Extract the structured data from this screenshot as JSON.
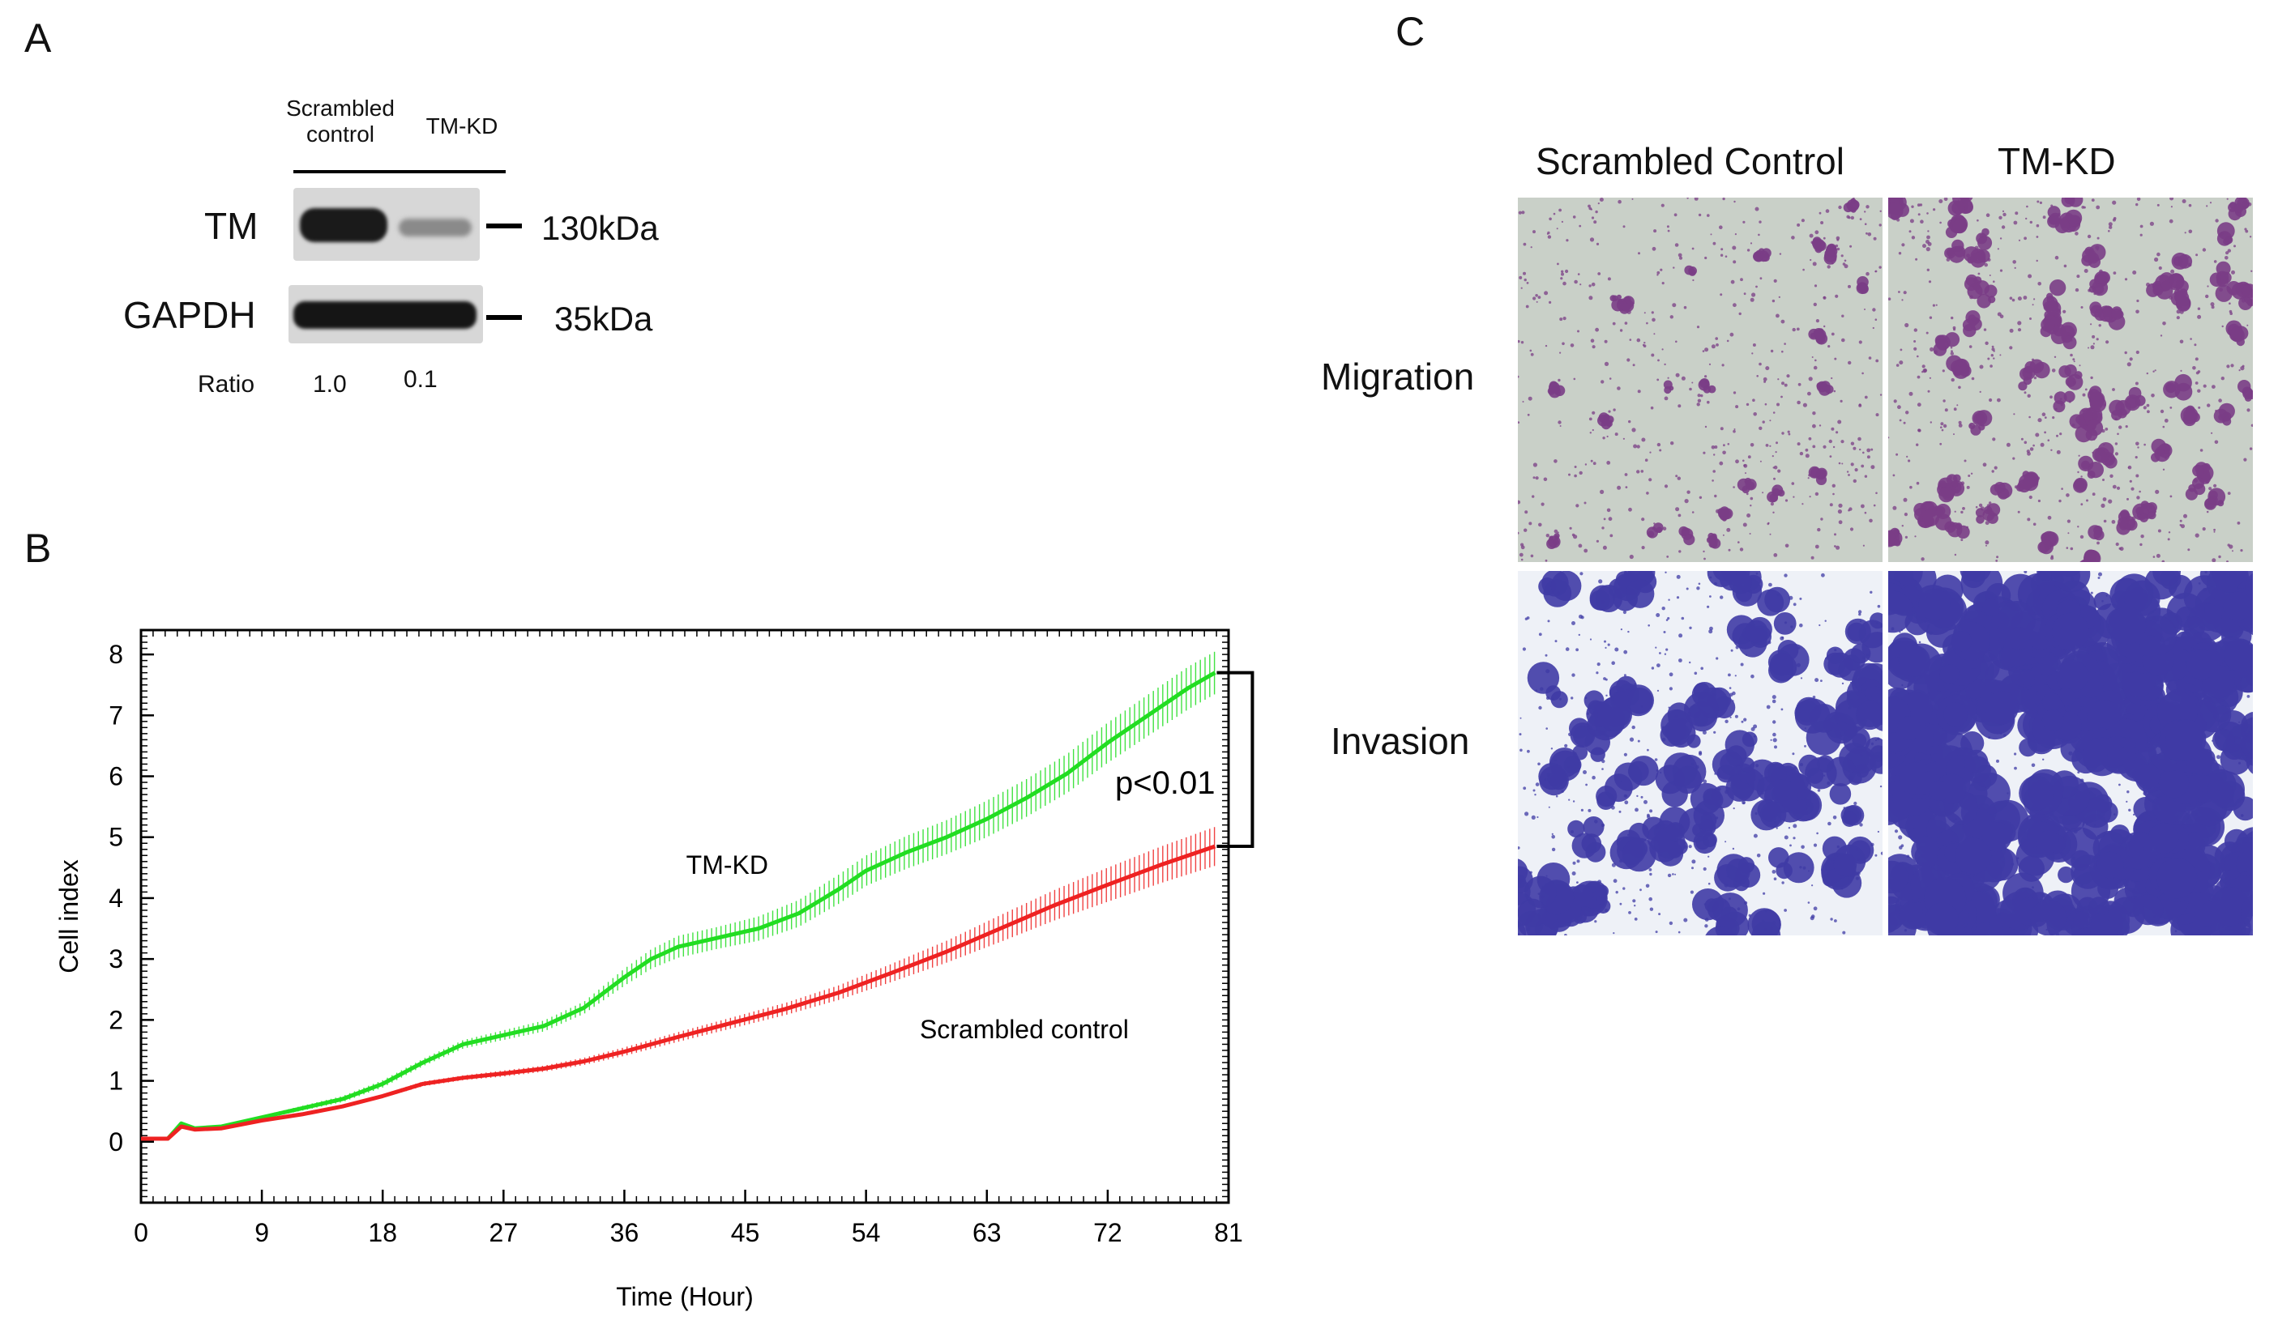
{
  "panels": {
    "a": "A",
    "b": "B",
    "c": "C"
  },
  "western_blot": {
    "lanes": [
      "Scrambled\ncontrol",
      "TM-KD"
    ],
    "rows": [
      {
        "label": "TM",
        "size": "130kDa"
      },
      {
        "label": "GAPDH",
        "size": "35kDa"
      }
    ],
    "ratio_label": "Ratio",
    "ratio_values": [
      "1.0",
      "0.1"
    ]
  },
  "chart_data": {
    "type": "line",
    "title": "",
    "xlabel": "Time (Hour)",
    "ylabel": "Cell index",
    "xlim": [
      0,
      81
    ],
    "ylim": [
      -1,
      8.4
    ],
    "xticks": [
      0,
      9,
      18,
      27,
      36,
      45,
      54,
      63,
      72,
      81
    ],
    "yticks": [
      0,
      1,
      2,
      3,
      4,
      5,
      6,
      7,
      8
    ],
    "series": [
      {
        "name": "TM-KD",
        "color": "#22dd22",
        "x": [
          0,
          2,
          3,
          4,
          6,
          9,
          12,
          15,
          18,
          21,
          24,
          27,
          30,
          33,
          36,
          38,
          40,
          43,
          46,
          49,
          52,
          54,
          57,
          60,
          63,
          66,
          69,
          72,
          75,
          78,
          80
        ],
        "y": [
          0.05,
          0.05,
          0.3,
          0.22,
          0.25,
          0.4,
          0.55,
          0.7,
          0.95,
          1.3,
          1.6,
          1.75,
          1.9,
          2.2,
          2.7,
          3.0,
          3.2,
          3.35,
          3.5,
          3.75,
          4.15,
          4.45,
          4.75,
          5.0,
          5.3,
          5.65,
          6.05,
          6.55,
          7.0,
          7.45,
          7.7
        ],
        "error": [
          0,
          0,
          0,
          0,
          0.02,
          0.03,
          0.04,
          0.05,
          0.06,
          0.06,
          0.07,
          0.08,
          0.09,
          0.1,
          0.14,
          0.16,
          0.18,
          0.18,
          0.2,
          0.22,
          0.24,
          0.25,
          0.27,
          0.28,
          0.3,
          0.31,
          0.32,
          0.33,
          0.34,
          0.35,
          0.35
        ]
      },
      {
        "name": "Scrambled control",
        "color": "#ee2222",
        "x": [
          0,
          2,
          3,
          4,
          6,
          9,
          12,
          15,
          18,
          21,
          24,
          27,
          30,
          33,
          36,
          40,
          44,
          48,
          52,
          56,
          60,
          64,
          68,
          72,
          76,
          80
        ],
        "y": [
          0.05,
          0.05,
          0.25,
          0.2,
          0.22,
          0.35,
          0.45,
          0.58,
          0.75,
          0.95,
          1.05,
          1.12,
          1.2,
          1.32,
          1.48,
          1.72,
          1.95,
          2.18,
          2.45,
          2.78,
          3.12,
          3.5,
          3.88,
          4.22,
          4.55,
          4.85
        ],
        "error": [
          0,
          0,
          0,
          0,
          0.01,
          0.02,
          0.02,
          0.03,
          0.03,
          0.04,
          0.04,
          0.05,
          0.05,
          0.06,
          0.07,
          0.08,
          0.09,
          0.1,
          0.12,
          0.15,
          0.18,
          0.22,
          0.25,
          0.28,
          0.3,
          0.32
        ]
      }
    ],
    "annotations": {
      "tmkd": "TM-KD",
      "scrambled": "Scrambled control",
      "pvalue": "p<0.01"
    }
  },
  "microscopy": {
    "columns": [
      "Scrambled Control",
      "TM-KD"
    ],
    "rows": [
      "Migration",
      "Invasion"
    ]
  },
  "colors": {
    "migration_bg": "#c9d0c8",
    "invasion_bg": "#eef1f7",
    "cell_purple": "#7a3d86",
    "cell_blue": "#3f3ba5"
  }
}
